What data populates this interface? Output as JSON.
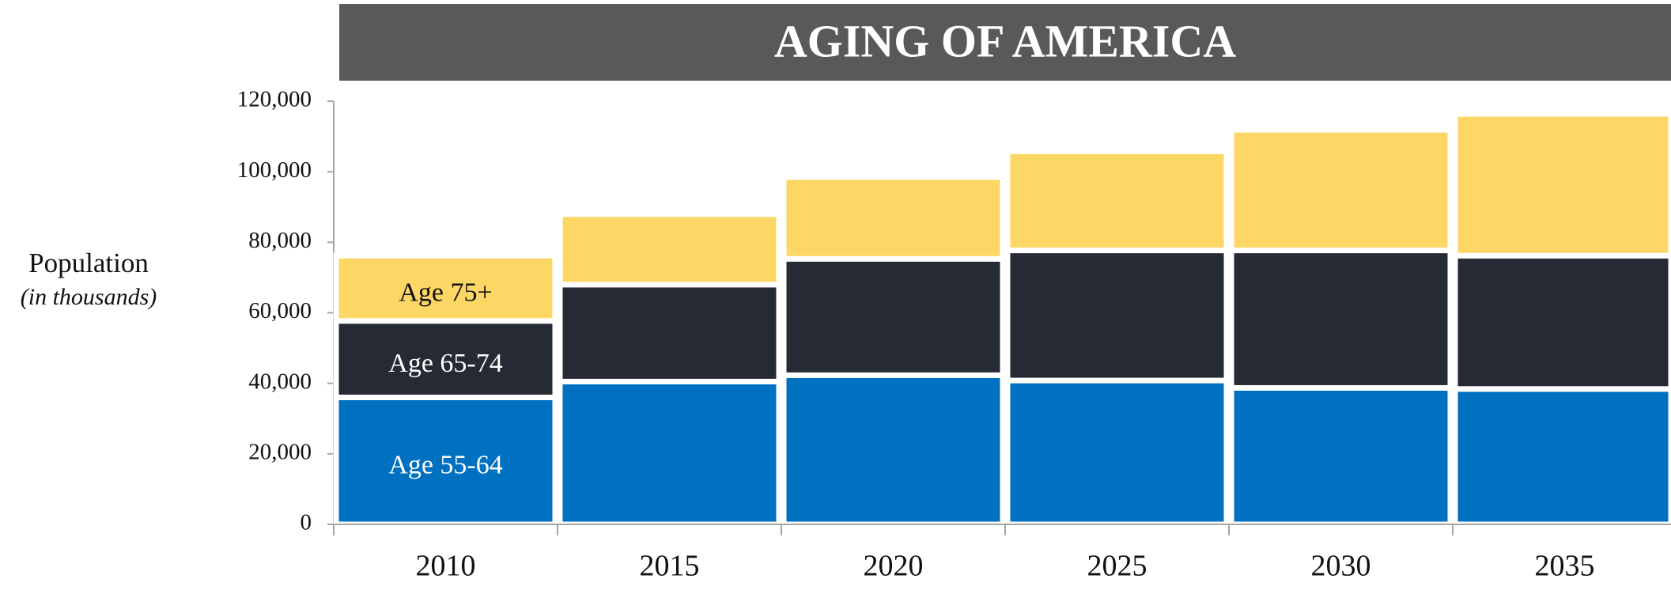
{
  "chart_data": {
    "type": "stacked_bar",
    "title": "AGING OF AMERICA",
    "y_label": "Population",
    "y_sublabel": "(in thousands)",
    "categories": [
      "2010",
      "2015",
      "2020",
      "2025",
      "2030",
      "2035"
    ],
    "series": [
      {
        "name": "Age 55-64",
        "color": "#0070c0",
        "label_color": "#ffffff",
        "values": [
          36000,
          40500,
          42300,
          40800,
          38700,
          38400
        ]
      },
      {
        "name": "Age 65-74",
        "color": "#252a34",
        "label_color": "#ffffff",
        "values": [
          21700,
          27500,
          33000,
          36900,
          39000,
          37800
        ]
      },
      {
        "name": "Age 75+",
        "color": "#fdd766",
        "label_color": "#111111",
        "values": [
          18500,
          20000,
          23200,
          28100,
          34200,
          40200
        ]
      }
    ],
    "ylim": [
      0,
      120000
    ],
    "yticks": [
      0,
      {
        "value": 20000,
        "label": "20,000"
      },
      {
        "value": 40000,
        "label": "40,000"
      },
      {
        "value": 60000,
        "label": "60,000"
      },
      {
        "value": 80000,
        "label": "80,000"
      },
      {
        "value": 100000,
        "label": "100,000"
      },
      {
        "value": 120000,
        "label": "120,000"
      }
    ]
  }
}
